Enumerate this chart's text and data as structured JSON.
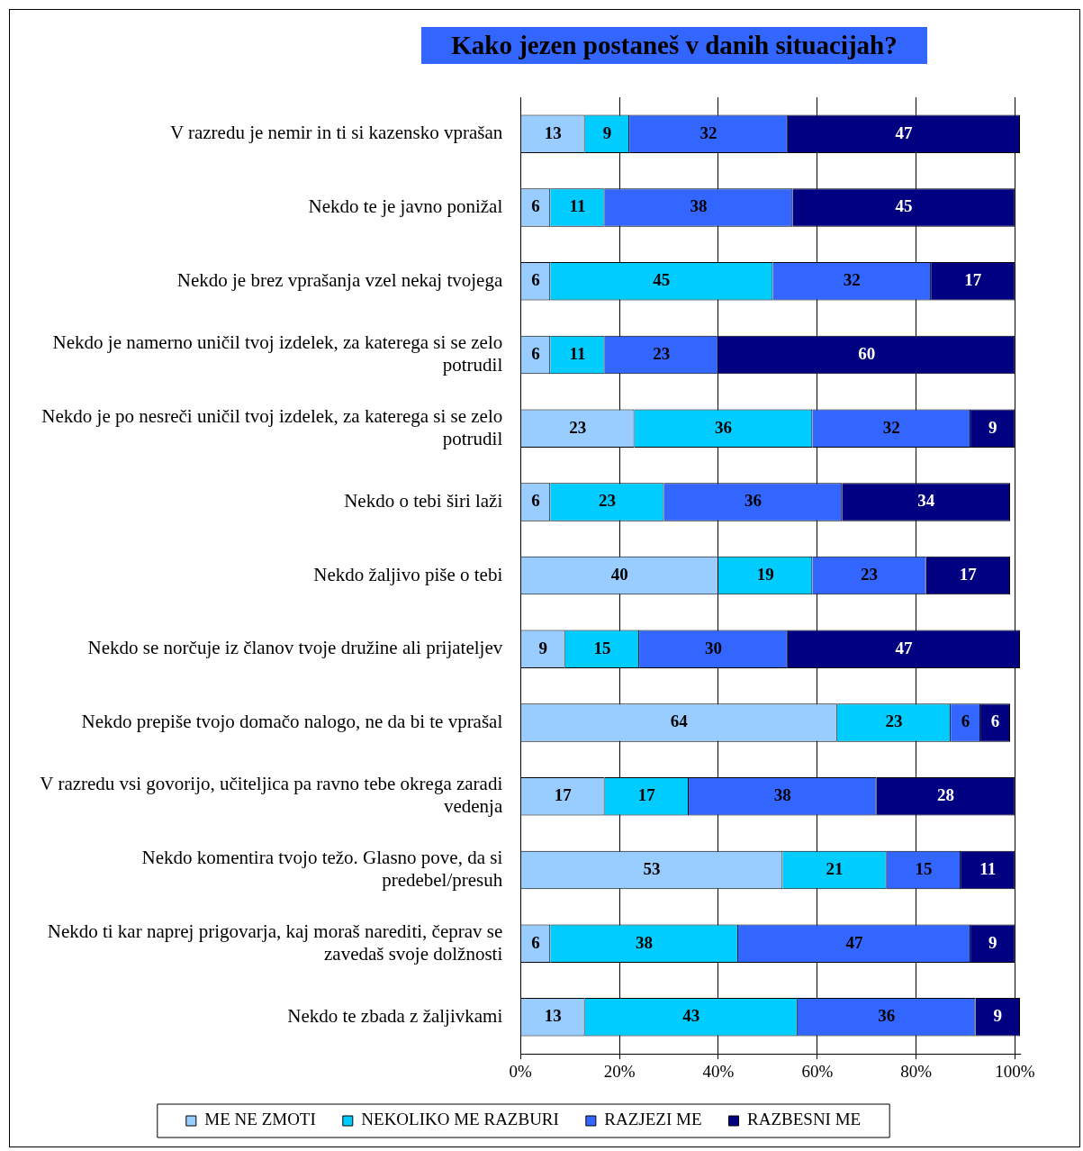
{
  "chart_data": {
    "type": "bar",
    "orientation": "horizontal",
    "stacked": true,
    "title": "Kako jezen postaneš v danih situacijah?",
    "categories": [
      "V razredu je nemir in ti si kazensko vprašan",
      "Nekdo te je javno ponižal",
      "Nekdo je brez vprašanja vzel nekaj tvojega",
      "Nekdo je namerno uničil tvoj izdelek, za katerega si se zelo potrudil",
      "Nekdo je po nesreči uničil tvoj izdelek, za katerega si se zelo potrudil",
      "Nekdo o tebi širi laži",
      "Nekdo žaljivo piše o tebi",
      "Nekdo se norčuje iz članov tvoje družine ali prijateljev",
      "Nekdo prepiše tvojo domačo nalogo, ne da bi te vprašal",
      "V razredu vsi govorijo, učiteljica pa ravno tebe okrega zaradi vedenja",
      "Nekdo komentira tvojo težo. Glasno pove, da si predebel/presuh",
      "Nekdo ti kar naprej prigovarja, kaj moraš narediti, čeprav se zavedaš svoje dolžnosti",
      "Nekdo te zbada z žaljivkami"
    ],
    "series": [
      {
        "name": "ME NE ZMOTI",
        "color": "#99ccff",
        "values": [
          13,
          6,
          6,
          6,
          23,
          6,
          40,
          9,
          64,
          17,
          53,
          6,
          13
        ]
      },
      {
        "name": "NEKOLIKO ME RAZBURI",
        "color": "#00ccff",
        "values": [
          9,
          11,
          45,
          11,
          36,
          23,
          19,
          15,
          23,
          17,
          21,
          38,
          43
        ]
      },
      {
        "name": "RAZJEZI ME",
        "color": "#3366ff",
        "values": [
          32,
          38,
          32,
          23,
          32,
          36,
          23,
          30,
          6,
          38,
          15,
          47,
          36
        ]
      },
      {
        "name": "RAZBESNI ME",
        "color": "#000080",
        "values": [
          47,
          45,
          17,
          60,
          9,
          34,
          17,
          47,
          6,
          28,
          11,
          9,
          9
        ]
      }
    ],
    "xlim": [
      0,
      101
    ],
    "xticks": [
      {
        "value": 0,
        "label": "0%"
      },
      {
        "value": 20,
        "label": "20%"
      },
      {
        "value": 40,
        "label": "40%"
      },
      {
        "value": 60,
        "label": "60%"
      },
      {
        "value": 80,
        "label": "80%"
      },
      {
        "value": 100,
        "label": "100%"
      }
    ],
    "grid": "x",
    "legend": "bottom",
    "data_labels": true
  }
}
